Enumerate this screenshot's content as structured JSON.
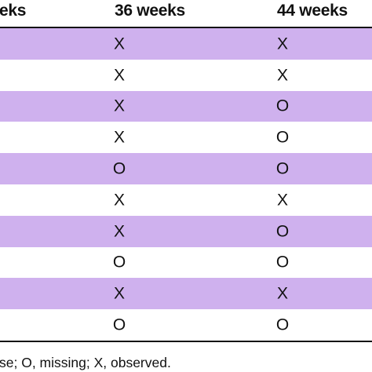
{
  "table": {
    "headers": [
      "eks",
      "36 weeks",
      "44 weeks"
    ],
    "rows": [
      {
        "w36": "X",
        "w44": "X"
      },
      {
        "w36": "X",
        "w44": "X"
      },
      {
        "w36": "X",
        "w44": "O"
      },
      {
        "w36": "X",
        "w44": "O"
      },
      {
        "w36": "O",
        "w44": "O"
      },
      {
        "w36": "X",
        "w44": "X"
      },
      {
        "w36": "X",
        "w44": "O"
      },
      {
        "w36": "O",
        "w44": "O"
      },
      {
        "w36": "X",
        "w44": "X"
      },
      {
        "w36": "O",
        "w44": "O"
      }
    ],
    "shade_color": "#cfb1ee"
  },
  "footnote": "se; O, missing; X, observed."
}
